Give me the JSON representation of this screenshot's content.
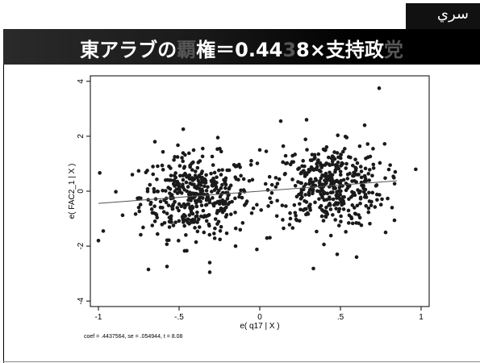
{
  "header": {
    "tag_text": "سري",
    "title_parts": [
      {
        "text": "東アラブの",
        "highlight": false
      },
      {
        "text": "覇",
        "highlight": true
      },
      {
        "text": "権＝0.44",
        "highlight": false
      },
      {
        "text": "3",
        "highlight": true
      },
      {
        "text": "8×支持政",
        "highlight": false
      },
      {
        "text": "党",
        "highlight": true
      }
    ]
  },
  "chart_data": {
    "type": "scatter",
    "xlabel": "e( q17 | X )",
    "ylabel": "e( FAC2_1 | X )",
    "xlim": [
      -1.05,
      1.05
    ],
    "ylim": [
      -4.2,
      4.2
    ],
    "xticks": [
      "-1",
      "-.5",
      "0",
      ".5",
      "1"
    ],
    "xtick_values": [
      -1,
      -0.5,
      0,
      0.5,
      1
    ],
    "yticks": [
      "-4",
      "-2",
      "0",
      "2",
      "4"
    ],
    "ytick_values": [
      -4,
      -2,
      0,
      2,
      4
    ],
    "fit_line": {
      "slope": 0.4437564,
      "intercept": 0.0,
      "x_range": [
        -1.0,
        0.85
      ]
    },
    "note": "coef = .4437564, se = .054944, t = 8.08",
    "clusters": [
      {
        "center_x": -0.4,
        "center_y": -0.2,
        "spread_x": 0.17,
        "spread_y": 0.75,
        "count": 420
      },
      {
        "center_x": 0.43,
        "center_y": 0.2,
        "spread_x": 0.17,
        "spread_y": 0.75,
        "count": 420
      }
    ],
    "notable_points": [
      {
        "x": -1.0,
        "y": -1.8
      },
      {
        "x": -0.97,
        "y": -1.45
      },
      {
        "x": -0.69,
        "y": -2.85
      },
      {
        "x": -0.31,
        "y": -2.95
      },
      {
        "x": -0.31,
        "y": -2.6
      },
      {
        "x": -0.26,
        "y": 1.95
      },
      {
        "x": 0.74,
        "y": 3.75
      },
      {
        "x": 0.29,
        "y": 2.6
      },
      {
        "x": 0.13,
        "y": 2.55
      },
      {
        "x": 0.65,
        "y": 2.4
      },
      {
        "x": -0.65,
        "y": 1.8
      },
      {
        "x": 0.0,
        "y": 1.5
      },
      {
        "x": 0.04,
        "y": 1.45
      },
      {
        "x": 0.6,
        "y": -2.4
      },
      {
        "x": 0.48,
        "y": -2.3
      },
      {
        "x": 0.78,
        "y": -1.5
      },
      {
        "x": 0.82,
        "y": -0.6
      },
      {
        "x": -0.15,
        "y": -2.0
      },
      {
        "x": -0.05,
        "y": -0.8
      }
    ],
    "point_color": "#1a1a1a"
  }
}
